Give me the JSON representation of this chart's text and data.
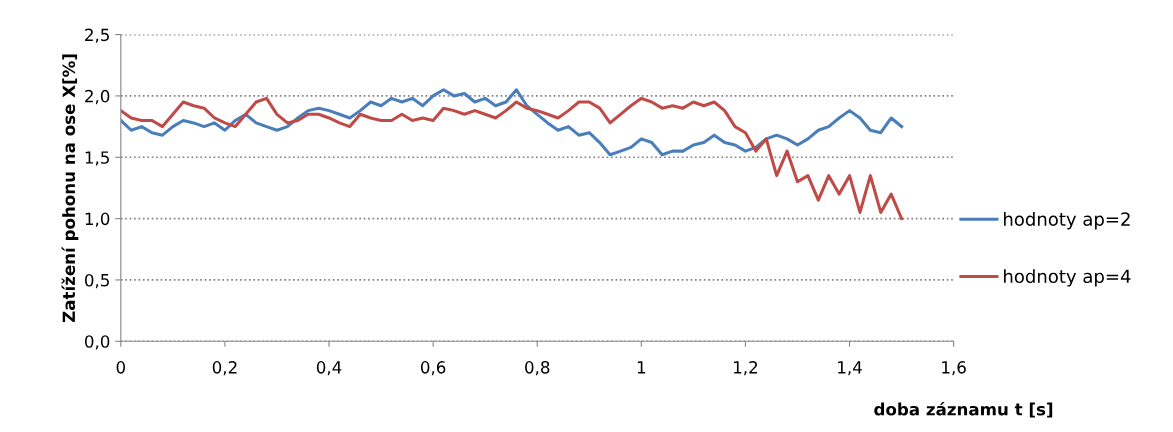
{
  "chart_data": {
    "type": "line",
    "xlabel": "doba záznamu t [s]",
    "ylabel": "Zatížení pohonu na ose X[%]",
    "x": [
      0,
      0.02,
      0.04,
      0.06,
      0.08,
      0.1,
      0.12,
      0.14,
      0.16,
      0.18,
      0.2,
      0.22,
      0.24,
      0.26,
      0.28,
      0.3,
      0.32,
      0.34,
      0.36,
      0.38,
      0.4,
      0.42,
      0.44,
      0.46,
      0.48,
      0.5,
      0.52,
      0.54,
      0.56,
      0.58,
      0.6,
      0.62,
      0.64,
      0.66,
      0.68,
      0.7,
      0.72,
      0.74,
      0.76,
      0.78,
      0.8,
      0.82,
      0.84,
      0.86,
      0.88,
      0.9,
      0.92,
      0.94,
      0.96,
      0.98,
      1.0,
      1.02,
      1.04,
      1.06,
      1.08,
      1.1,
      1.12,
      1.14,
      1.16,
      1.18,
      1.2,
      1.22,
      1.24,
      1.26,
      1.28,
      1.3,
      1.32,
      1.34,
      1.36,
      1.38,
      1.4,
      1.42,
      1.44,
      1.46,
      1.48,
      1.5
    ],
    "series": [
      {
        "name": "hodnoty ap=2",
        "color": "#4a7ebb",
        "values": [
          1.8,
          1.72,
          1.75,
          1.7,
          1.68,
          1.75,
          1.8,
          1.78,
          1.75,
          1.78,
          1.72,
          1.8,
          1.85,
          1.78,
          1.75,
          1.72,
          1.75,
          1.82,
          1.88,
          1.9,
          1.88,
          1.85,
          1.82,
          1.88,
          1.95,
          1.92,
          1.98,
          1.95,
          1.98,
          1.92,
          2.0,
          2.05,
          2.0,
          2.02,
          1.95,
          1.98,
          1.92,
          1.95,
          2.05,
          1.92,
          1.85,
          1.78,
          1.72,
          1.75,
          1.68,
          1.7,
          1.62,
          1.52,
          1.55,
          1.58,
          1.65,
          1.62,
          1.52,
          1.55,
          1.55,
          1.6,
          1.62,
          1.68,
          1.62,
          1.6,
          1.55,
          1.58,
          1.65,
          1.68,
          1.65,
          1.6,
          1.65,
          1.72,
          1.75,
          1.82,
          1.88,
          1.82,
          1.72,
          1.7,
          1.82,
          1.75
        ]
      },
      {
        "name": "hodnoty ap=4",
        "color": "#be4b48",
        "values": [
          1.88,
          1.82,
          1.8,
          1.8,
          1.75,
          1.85,
          1.95,
          1.92,
          1.9,
          1.82,
          1.78,
          1.75,
          1.85,
          1.95,
          1.98,
          1.85,
          1.78,
          1.8,
          1.85,
          1.85,
          1.82,
          1.78,
          1.75,
          1.85,
          1.82,
          1.8,
          1.8,
          1.85,
          1.8,
          1.82,
          1.8,
          1.9,
          1.88,
          1.85,
          1.88,
          1.85,
          1.82,
          1.88,
          1.95,
          1.9,
          1.88,
          1.85,
          1.82,
          1.88,
          1.95,
          1.95,
          1.9,
          1.78,
          1.85,
          1.92,
          1.98,
          1.95,
          1.9,
          1.92,
          1.9,
          1.95,
          1.92,
          1.95,
          1.88,
          1.75,
          1.7,
          1.55,
          1.65,
          1.35,
          1.55,
          1.3,
          1.35,
          1.15,
          1.35,
          1.2,
          1.35,
          1.05,
          1.35,
          1.05,
          1.2,
          1.0
        ]
      }
    ],
    "xlim": [
      0,
      1.6
    ],
    "xticks": [
      0,
      {
        "value": 0.2,
        "label": "0,2"
      },
      {
        "value": 0.4,
        "label": "0,4"
      },
      {
        "value": 0.6,
        "label": "0,6"
      },
      {
        "value": 0.8,
        "label": "0,8"
      },
      1,
      {
        "value": 1.2,
        "label": "1,2"
      },
      {
        "value": 1.4,
        "label": "1,4"
      },
      {
        "value": 1.6,
        "label": "1,6"
      }
    ],
    "ylim": [
      0,
      2.5
    ],
    "yticks": [
      {
        "value": 0,
        "label": "0,0"
      },
      {
        "value": 0.5,
        "label": "0,5"
      },
      {
        "value": 1.0,
        "label": "1,0"
      },
      {
        "value": 1.5,
        "label": "1,5"
      },
      {
        "value": 2.0,
        "label": "2,0"
      },
      {
        "value": 2.5,
        "label": "2,5"
      }
    ],
    "grid": "y",
    "legend": "right",
    "marker": "none",
    "line_style": "solid"
  }
}
